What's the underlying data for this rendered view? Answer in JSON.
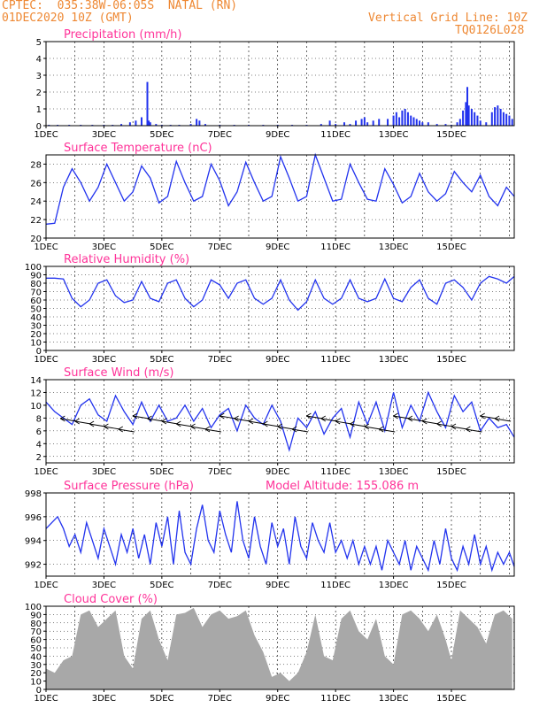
{
  "header": {
    "line1": "CPTEC:  035:38W-06:05S  NATAL (RN)",
    "line2": "01DEC2020 10Z (GMT)",
    "right1": "Vertical Grid Line: 10Z",
    "right2": "TQ0126L028"
  },
  "x_labels": [
    "1DEC",
    "3DEC",
    "5DEC",
    "7DEC",
    "9DEC",
    "11DEC",
    "13DEC",
    "15DEC"
  ],
  "colors": {
    "header": "#ee8833",
    "title": "#ff3399",
    "line": "#2233ee",
    "cloud": "#a8a8a8",
    "grid": "#000000"
  },
  "chart_data": [
    {
      "type": "bar",
      "title": "Precipitation (mm/h)",
      "ylim": [
        0,
        5
      ],
      "yticks": [
        0,
        1,
        2,
        3,
        4,
        5
      ],
      "x_unit": "days from 01DEC 10Z",
      "x": [
        0.1,
        0.4,
        0.8,
        1.2,
        1.6,
        2.0,
        2.3,
        2.6,
        2.9,
        3.1,
        3.3,
        3.5,
        3.55,
        3.6,
        3.8,
        4.0,
        4.3,
        4.6,
        5.0,
        5.2,
        5.3,
        5.5,
        6.0,
        6.5,
        7.0,
        7.5,
        8.0,
        8.5,
        9.0,
        9.5,
        9.8,
        10.0,
        10.3,
        10.5,
        10.7,
        10.9,
        11.0,
        11.1,
        11.3,
        11.5,
        11.8,
        12.0,
        12.1,
        12.2,
        12.3,
        12.4,
        12.5,
        12.6,
        12.7,
        12.8,
        12.9,
        13.0,
        13.2,
        13.5,
        13.8,
        14.0,
        14.2,
        14.3,
        14.4,
        14.5,
        14.55,
        14.6,
        14.7,
        14.8,
        14.9,
        15.0,
        15.2,
        15.4,
        15.5,
        15.6,
        15.7,
        15.8,
        15.9,
        16.0,
        16.1
      ],
      "values": [
        0.05,
        0.05,
        0.05,
        0.05,
        0.05,
        0.05,
        0.05,
        0.1,
        0.2,
        0.3,
        0.5,
        2.6,
        0.3,
        0.2,
        0.1,
        0.05,
        0.05,
        0.05,
        0.1,
        0.4,
        0.3,
        0.1,
        0.05,
        0.05,
        0.05,
        0.05,
        0.05,
        0.05,
        0.05,
        0.1,
        0.3,
        0.1,
        0.2,
        0.1,
        0.3,
        0.4,
        0.5,
        0.2,
        0.3,
        0.4,
        0.4,
        0.6,
        0.8,
        0.5,
        0.9,
        1.0,
        0.8,
        0.6,
        0.5,
        0.4,
        0.3,
        0.2,
        0.2,
        0.1,
        0.1,
        0.05,
        0.2,
        0.4,
        0.9,
        1.4,
        2.3,
        1.2,
        1.0,
        0.8,
        0.6,
        0.3,
        0.2,
        0.8,
        1.1,
        1.2,
        1.0,
        0.8,
        0.7,
        0.6,
        0.4
      ]
    },
    {
      "type": "line",
      "title": "Surface Temperature (nC)",
      "ylim": [
        20,
        29
      ],
      "yticks": [
        20,
        22,
        24,
        26,
        28
      ],
      "x_unit": "days from 01DEC 10Z",
      "x": [
        0.0,
        0.3,
        0.6,
        0.9,
        1.2,
        1.5,
        1.8,
        2.1,
        2.4,
        2.7,
        3.0,
        3.3,
        3.6,
        3.9,
        4.2,
        4.5,
        4.8,
        5.1,
        5.4,
        5.7,
        6.0,
        6.3,
        6.6,
        6.9,
        7.2,
        7.5,
        7.8,
        8.1,
        8.4,
        8.7,
        9.0,
        9.3,
        9.6,
        9.9,
        10.2,
        10.5,
        10.8,
        11.1,
        11.4,
        11.7,
        12.0,
        12.3,
        12.6,
        12.9,
        13.2,
        13.5,
        13.8,
        14.1,
        14.4,
        14.7,
        15.0,
        15.3,
        15.6,
        15.9,
        16.2
      ],
      "values": [
        21.5,
        21.6,
        25.5,
        27.5,
        26.0,
        24.0,
        25.5,
        28.0,
        26.0,
        24.0,
        25.0,
        27.8,
        26.5,
        23.8,
        24.5,
        28.3,
        26.0,
        24.0,
        24.5,
        28.0,
        26.2,
        23.5,
        25.0,
        28.2,
        26.0,
        24.0,
        24.5,
        28.8,
        26.5,
        24.0,
        24.5,
        29.0,
        26.5,
        24.0,
        24.2,
        28.0,
        26.0,
        24.2,
        24.0,
        27.5,
        25.8,
        23.8,
        24.5,
        27.0,
        25.0,
        24.0,
        24.8,
        27.2,
        26.0,
        25.0,
        26.8,
        24.5,
        23.5,
        25.5,
        24.5
      ]
    },
    {
      "type": "line",
      "title": "Relative Humidity (%)",
      "ylim": [
        0,
        100
      ],
      "yticks": [
        0,
        10,
        20,
        30,
        40,
        50,
        60,
        70,
        80,
        90,
        100
      ],
      "x_unit": "days from 01DEC 10Z",
      "x": [
        0.0,
        0.3,
        0.6,
        0.9,
        1.2,
        1.5,
        1.8,
        2.1,
        2.4,
        2.7,
        3.0,
        3.3,
        3.6,
        3.9,
        4.2,
        4.5,
        4.8,
        5.1,
        5.4,
        5.7,
        6.0,
        6.3,
        6.6,
        6.9,
        7.2,
        7.5,
        7.8,
        8.1,
        8.4,
        8.7,
        9.0,
        9.3,
        9.6,
        9.9,
        10.2,
        10.5,
        10.8,
        11.1,
        11.4,
        11.7,
        12.0,
        12.3,
        12.6,
        12.9,
        13.2,
        13.5,
        13.8,
        14.1,
        14.4,
        14.7,
        15.0,
        15.3,
        15.6,
        15.9,
        16.2
      ],
      "values": [
        86,
        86,
        85,
        62,
        52,
        60,
        80,
        84,
        65,
        57,
        60,
        82,
        62,
        58,
        80,
        84,
        62,
        52,
        60,
        84,
        78,
        62,
        80,
        84,
        62,
        55,
        62,
        84,
        60,
        48,
        58,
        84,
        62,
        55,
        62,
        84,
        62,
        58,
        62,
        85,
        62,
        58,
        75,
        84,
        62,
        55,
        80,
        84,
        75,
        60,
        80,
        88,
        85,
        80,
        88
      ]
    },
    {
      "type": "line",
      "title": "Surface Wind (m/s)",
      "ylim": [
        1,
        14
      ],
      "yticks": [
        2,
        4,
        6,
        8,
        10,
        12,
        14
      ],
      "x_unit": "days from 01DEC 10Z",
      "x": [
        0.0,
        0.3,
        0.6,
        0.9,
        1.2,
        1.5,
        1.8,
        2.1,
        2.4,
        2.7,
        3.0,
        3.3,
        3.6,
        3.9,
        4.2,
        4.5,
        4.8,
        5.1,
        5.4,
        5.7,
        6.0,
        6.3,
        6.6,
        6.9,
        7.2,
        7.5,
        7.8,
        8.1,
        8.4,
        8.7,
        9.0,
        9.3,
        9.6,
        9.9,
        10.2,
        10.5,
        10.8,
        11.1,
        11.4,
        11.7,
        12.0,
        12.3,
        12.6,
        12.9,
        13.2,
        13.5,
        13.8,
        14.1,
        14.4,
        14.7,
        15.0,
        15.3,
        15.6,
        15.9,
        16.2
      ],
      "values": [
        10.5,
        9.0,
        8.0,
        7.0,
        10.0,
        11.0,
        8.5,
        7.5,
        11.5,
        9.0,
        7.0,
        10.5,
        7.5,
        10.0,
        7.5,
        8.0,
        10.0,
        7.5,
        9.5,
        6.5,
        8.5,
        9.5,
        6.0,
        10.0,
        8.0,
        7.0,
        10.0,
        7.5,
        3.0,
        8.0,
        6.5,
        9.0,
        5.5,
        8.0,
        9.5,
        5.0,
        10.5,
        7.0,
        10.5,
        6.0,
        12.0,
        6.5,
        10.0,
        7.5,
        12.0,
        9.0,
        6.5,
        11.5,
        9.0,
        10.5,
        6.0,
        8.0,
        6.5,
        7.0,
        5.0
      ]
    },
    {
      "type": "line",
      "title": "Surface Pressure (hPa)",
      "annotation": "Model Altitude: 155.086 m",
      "ylim": [
        991,
        998
      ],
      "yticks": [
        992,
        994,
        996,
        998
      ],
      "x_unit": "days from 01DEC 10Z",
      "x": [
        0.0,
        0.2,
        0.4,
        0.6,
        0.8,
        1.0,
        1.2,
        1.4,
        1.6,
        1.8,
        2.0,
        2.2,
        2.4,
        2.6,
        2.8,
        3.0,
        3.2,
        3.4,
        3.6,
        3.8,
        4.0,
        4.2,
        4.4,
        4.6,
        4.8,
        5.0,
        5.2,
        5.4,
        5.6,
        5.8,
        6.0,
        6.2,
        6.4,
        6.6,
        6.8,
        7.0,
        7.2,
        7.4,
        7.6,
        7.8,
        8.0,
        8.2,
        8.4,
        8.6,
        8.8,
        9.0,
        9.2,
        9.4,
        9.6,
        9.8,
        10.0,
        10.2,
        10.4,
        10.6,
        10.8,
        11.0,
        11.2,
        11.4,
        11.6,
        11.8,
        12.0,
        12.2,
        12.4,
        12.6,
        12.8,
        13.0,
        13.2,
        13.4,
        13.6,
        13.8,
        14.0,
        14.2,
        14.4,
        14.6,
        14.8,
        15.0,
        15.2,
        15.4,
        15.6,
        15.8,
        16.0,
        16.2
      ],
      "values": [
        995,
        995.5,
        996,
        995,
        993.5,
        994.5,
        993,
        995.5,
        994,
        992.5,
        995,
        993.5,
        992,
        994.5,
        993,
        995,
        992.5,
        994.5,
        992,
        995.5,
        993.5,
        996,
        992,
        996.5,
        993,
        992,
        995,
        997,
        994,
        993,
        996.5,
        994.5,
        993,
        997.3,
        994,
        992.5,
        996,
        993.5,
        992,
        995.5,
        993.5,
        995,
        992,
        996,
        993.5,
        992.5,
        995.5,
        994,
        993,
        995.5,
        993,
        994,
        992.5,
        994,
        992,
        993.5,
        992,
        993.5,
        991.5,
        994,
        993,
        992,
        994,
        991.5,
        993.5,
        992.5,
        991.5,
        994,
        992,
        995,
        992.5,
        991.5,
        993.5,
        992,
        994.5,
        992,
        993.5,
        991.5,
        993,
        992,
        993,
        991.8
      ]
    },
    {
      "type": "area",
      "title": "Cloud Cover (%)",
      "ylim": [
        0,
        100
      ],
      "yticks": [
        0,
        10,
        20,
        30,
        40,
        50,
        60,
        70,
        80,
        90,
        100
      ],
      "x_unit": "days from 01DEC 10Z",
      "x": [
        0.0,
        0.3,
        0.6,
        0.9,
        1.2,
        1.5,
        1.8,
        2.1,
        2.4,
        2.7,
        3.0,
        3.3,
        3.6,
        3.9,
        4.2,
        4.5,
        4.8,
        5.1,
        5.4,
        5.7,
        6.0,
        6.3,
        6.6,
        6.9,
        7.2,
        7.5,
        7.8,
        8.1,
        8.4,
        8.7,
        9.0,
        9.3,
        9.6,
        9.9,
        10.2,
        10.5,
        10.8,
        11.1,
        11.4,
        11.7,
        12.0,
        12.3,
        12.6,
        12.9,
        13.2,
        13.5,
        13.8,
        14.0,
        14.3,
        14.6,
        14.9,
        15.2,
        15.5,
        15.8,
        16.1
      ],
      "values": [
        25,
        20,
        35,
        40,
        90,
        95,
        75,
        85,
        95,
        40,
        25,
        85,
        95,
        60,
        35,
        90,
        92,
        98,
        75,
        90,
        95,
        85,
        88,
        95,
        65,
        45,
        15,
        20,
        10,
        20,
        45,
        90,
        40,
        35,
        85,
        95,
        70,
        60,
        85,
        40,
        30,
        90,
        95,
        85,
        70,
        90,
        60,
        35,
        95,
        85,
        75,
        55,
        90,
        95,
        85
      ]
    }
  ]
}
